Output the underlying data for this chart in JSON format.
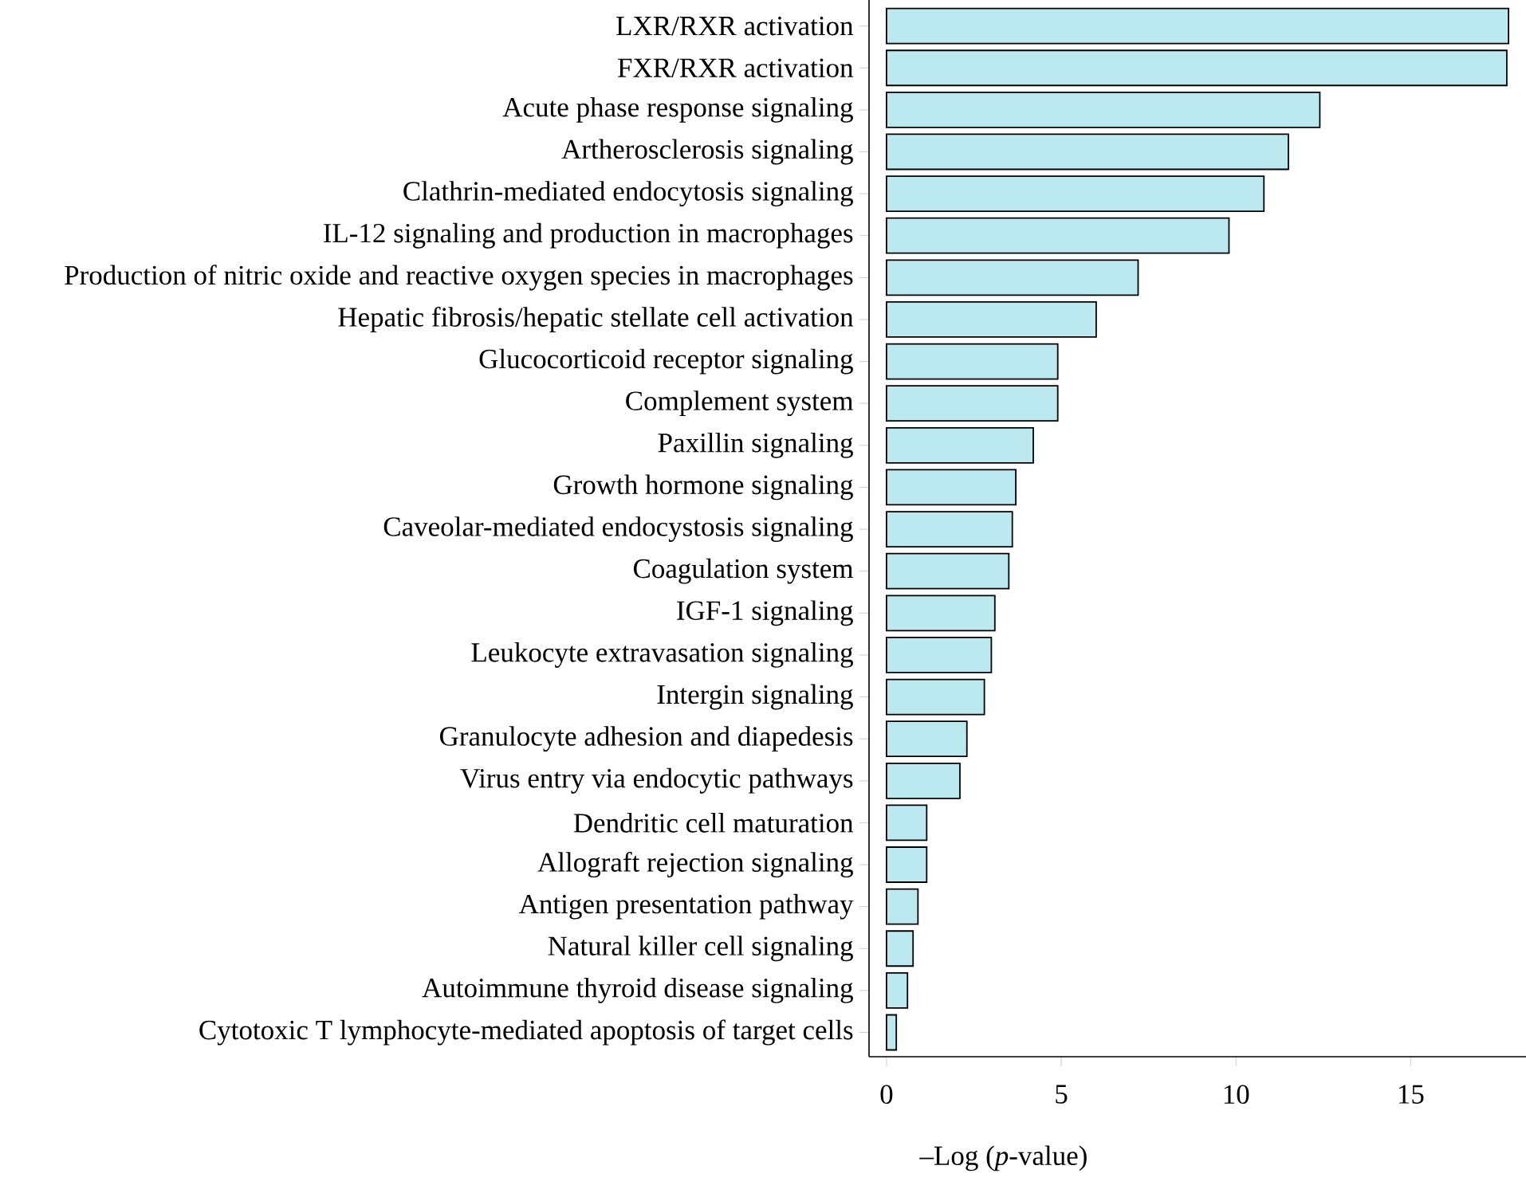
{
  "chart_data": {
    "type": "bar",
    "orientation": "horizontal",
    "xlabel": "–Log (*p*-value)",
    "categories": [
      "LXR/RXR activation",
      "FXR/RXR activation",
      "Acute phase response signaling",
      "Artherosclerosis signaling",
      "Clathrin-mediated endocytosis signaling",
      "IL-12 signaling and production in macrophages",
      "Production of nitric oxide and reactive oxygen species in macrophages",
      "Hepatic fibrosis/hepatic stellate cell activation",
      "Glucocorticoid receptor signaling",
      "Complement system",
      "Paxillin signaling",
      "Growth hormone signaling",
      "Caveolar-mediated endocystosis signaling",
      "Coagulation system",
      "IGF-1 signaling",
      "Leukocyte extravasation signaling",
      "Intergin signaling",
      "Granulocyte adhesion and diapedesis",
      "Virus entry via endocytic pathways",
      "Dendritic cell maturation",
      "Allograft rejection signaling",
      "Antigen presentation pathway",
      "Natural killer cell signaling",
      "Autoimmune thyroid disease signaling",
      "Cytotoxic T lymphocyte-mediated apoptosis of target cells"
    ],
    "values": [
      17.8,
      17.75,
      12.4,
      11.5,
      10.8,
      9.8,
      7.2,
      6.0,
      4.9,
      4.9,
      4.2,
      3.7,
      3.6,
      3.5,
      3.1,
      3.0,
      2.8,
      2.3,
      2.1,
      1.15,
      1.15,
      0.9,
      0.76,
      0.6,
      0.28
    ],
    "color": "#bce9f0",
    "xlim": [
      -0.5,
      18.3
    ],
    "xticks": [
      0,
      5,
      10,
      15
    ]
  }
}
